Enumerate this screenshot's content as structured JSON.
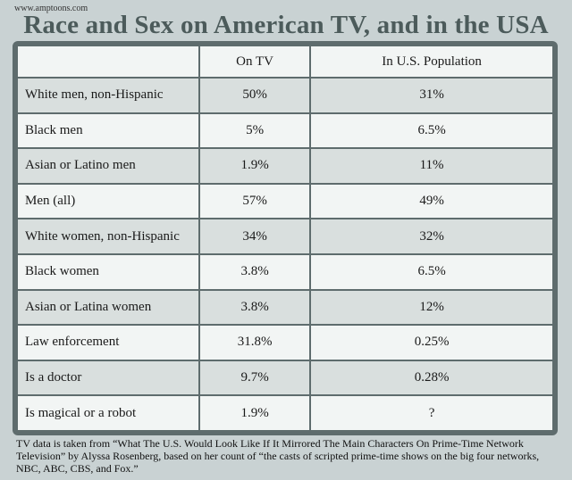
{
  "header": {
    "site": "www.amptoons.com",
    "title": "Race and Sex on American TV, and in the USA"
  },
  "chart_data": {
    "type": "table",
    "title": "Race and Sex on American TV, and in the USA",
    "columns": [
      "",
      "On TV",
      "In U.S. Population"
    ],
    "rows": [
      {
        "label": "White men, non-Hispanic",
        "tv": "50%",
        "pop": "31%"
      },
      {
        "label": "Black men",
        "tv": "5%",
        "pop": "6.5%"
      },
      {
        "label": "Asian or Latino men",
        "tv": "1.9%",
        "pop": "11%"
      },
      {
        "label": "Men (all)",
        "tv": "57%",
        "pop": "49%"
      },
      {
        "label": "White women, non-Hispanic",
        "tv": "34%",
        "pop": "32%"
      },
      {
        "label": "Black women",
        "tv": "3.8%",
        "pop": "6.5%"
      },
      {
        "label": "Asian or Latina women",
        "tv": "3.8%",
        "pop": "12%"
      },
      {
        "label": "Law enforcement",
        "tv": "31.8%",
        "pop": "0.25%"
      },
      {
        "label": "Is a doctor",
        "tv": "9.7%",
        "pop": "0.28%"
      },
      {
        "label": "Is magical or a robot",
        "tv": "1.9%",
        "pop": "?"
      }
    ]
  },
  "footnote": "TV data is taken from “What The U.S. Would Look Like If It Mirrored The Main Characters On Prime-Time Network Television”  by Alyssa Rosenberg, based on her count of “the casts of scripted prime-time shows on the big four networks, NBC, ABC, CBS, and Fox.”"
}
